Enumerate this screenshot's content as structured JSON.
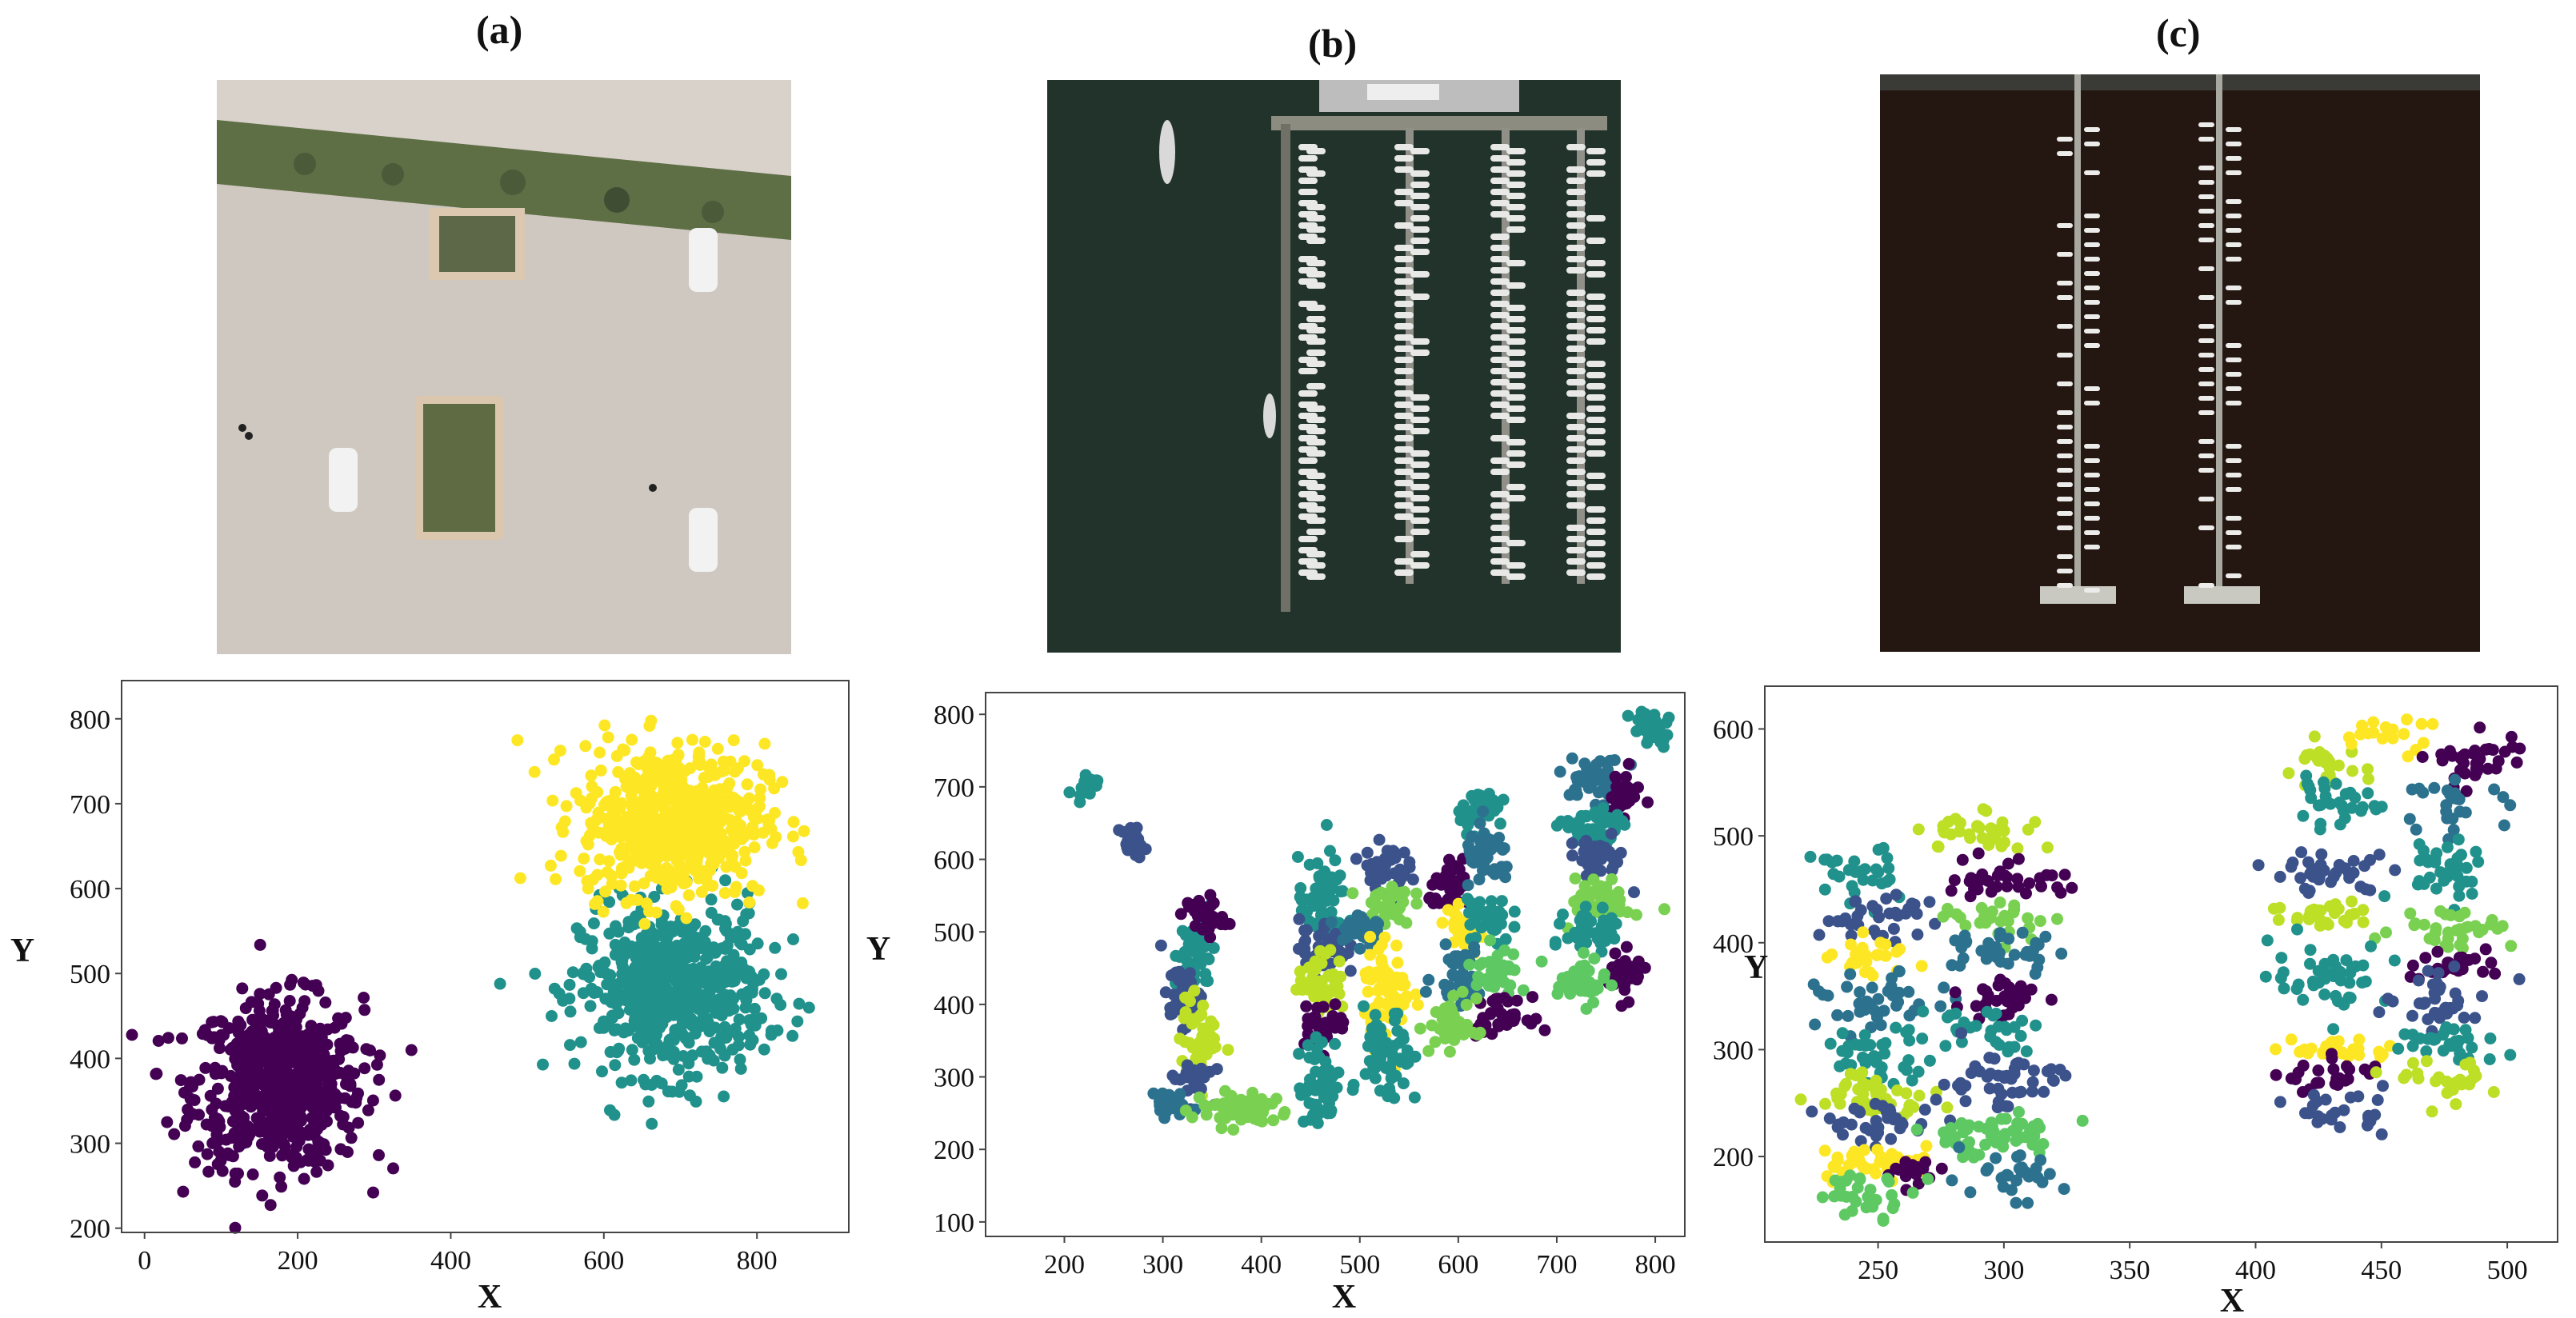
{
  "panels": [
    {
      "label": "(a)"
    },
    {
      "label": "(b)"
    },
    {
      "label": "(c)"
    }
  ],
  "photos": [
    {
      "description_icon": "parking-lot-aerial-photo"
    },
    {
      "description_icon": "marina-aerial-photo"
    },
    {
      "description_icon": "dark-marina-aerial-photo"
    }
  ],
  "chart_data": [
    {
      "type": "scatter",
      "xlabel": "X",
      "ylabel": "Y",
      "xlim": [
        -30,
        920
      ],
      "ylim": [
        195,
        845
      ],
      "xticks": [
        0,
        200,
        400,
        600,
        800
      ],
      "yticks": [
        200,
        300,
        400,
        500,
        600,
        700,
        800
      ],
      "grid": false,
      "clusters": [
        {
          "color": "#440154",
          "cx": 175,
          "cy": 370,
          "sx": 55,
          "sy": 50,
          "n": 650
        },
        {
          "color": "#21918c",
          "cx": 690,
          "cy": 480,
          "sx": 60,
          "sy": 50,
          "n": 600
        },
        {
          "color": "#fde725",
          "cx": 690,
          "cy": 680,
          "sx": 60,
          "sy": 45,
          "n": 600
        }
      ]
    },
    {
      "type": "scatter",
      "xlabel": "X",
      "ylabel": "Y",
      "xlim": [
        120,
        830
      ],
      "ylim": [
        80,
        830
      ],
      "xticks": [
        200,
        300,
        400,
        500,
        600,
        700,
        800
      ],
      "yticks": [
        100,
        200,
        300,
        400,
        500,
        600,
        700,
        800
      ],
      "grid": false,
      "clusters": [
        {
          "color": "#21918c",
          "cx": 222,
          "cy": 703,
          "sx": 6,
          "sy": 8,
          "n": 20
        },
        {
          "color": "#3b528b",
          "cx": 270,
          "cy": 625,
          "sx": 6,
          "sy": 10,
          "n": 25
        },
        {
          "color": "#21918c",
          "cx": 333,
          "cy": 470,
          "sx": 10,
          "sy": 25,
          "n": 40
        },
        {
          "color": "#440154",
          "cx": 343,
          "cy": 520,
          "sx": 10,
          "sy": 15,
          "n": 35
        },
        {
          "color": "#3b528b",
          "cx": 318,
          "cy": 410,
          "sx": 10,
          "sy": 20,
          "n": 35
        },
        {
          "color": "#bddf26",
          "cx": 338,
          "cy": 350,
          "sx": 10,
          "sy": 30,
          "n": 45
        },
        {
          "color": "#3b528b",
          "cx": 330,
          "cy": 300,
          "sx": 10,
          "sy": 15,
          "n": 30
        },
        {
          "color": "#2c728e",
          "cx": 300,
          "cy": 265,
          "sx": 10,
          "sy": 10,
          "n": 25
        },
        {
          "color": "#7ad151",
          "cx": 380,
          "cy": 255,
          "sx": 25,
          "sy": 12,
          "n": 60
        },
        {
          "color": "#21918c",
          "cx": 462,
          "cy": 540,
          "sx": 12,
          "sy": 30,
          "n": 60
        },
        {
          "color": "#3b528b",
          "cx": 462,
          "cy": 480,
          "sx": 12,
          "sy": 20,
          "n": 45
        },
        {
          "color": "#bddf26",
          "cx": 462,
          "cy": 430,
          "sx": 12,
          "sy": 20,
          "n": 45
        },
        {
          "color": "#440154",
          "cx": 462,
          "cy": 375,
          "sx": 12,
          "sy": 15,
          "n": 40
        },
        {
          "color": "#21918c",
          "cx": 462,
          "cy": 290,
          "sx": 12,
          "sy": 30,
          "n": 55
        },
        {
          "color": "#3b528b",
          "cx": 525,
          "cy": 590,
          "sx": 12,
          "sy": 15,
          "n": 40
        },
        {
          "color": "#7ad151",
          "cx": 528,
          "cy": 540,
          "sx": 12,
          "sy": 15,
          "n": 40
        },
        {
          "color": "#2c728e",
          "cx": 500,
          "cy": 505,
          "sx": 12,
          "sy": 15,
          "n": 30
        },
        {
          "color": "#fde725",
          "cx": 528,
          "cy": 420,
          "sx": 12,
          "sy": 35,
          "n": 65
        },
        {
          "color": "#21918c",
          "cx": 528,
          "cy": 320,
          "sx": 12,
          "sy": 35,
          "n": 60
        },
        {
          "color": "#21918c",
          "cx": 625,
          "cy": 670,
          "sx": 12,
          "sy": 15,
          "n": 40
        },
        {
          "color": "#440154",
          "cx": 595,
          "cy": 560,
          "sx": 12,
          "sy": 15,
          "n": 35
        },
        {
          "color": "#2c728e",
          "cx": 630,
          "cy": 600,
          "sx": 12,
          "sy": 20,
          "n": 45
        },
        {
          "color": "#fde725",
          "cx": 605,
          "cy": 500,
          "sx": 12,
          "sy": 15,
          "n": 35
        },
        {
          "color": "#21918c",
          "cx": 630,
          "cy": 520,
          "sx": 12,
          "sy": 20,
          "n": 40
        },
        {
          "color": "#2c728e",
          "cx": 600,
          "cy": 440,
          "sx": 12,
          "sy": 20,
          "n": 40
        },
        {
          "color": "#5ec962",
          "cx": 640,
          "cy": 450,
          "sx": 15,
          "sy": 15,
          "n": 40
        },
        {
          "color": "#440154",
          "cx": 640,
          "cy": 385,
          "sx": 15,
          "sy": 12,
          "n": 35
        },
        {
          "color": "#7ad151",
          "cx": 595,
          "cy": 370,
          "sx": 12,
          "sy": 20,
          "n": 40
        },
        {
          "color": "#2c728e",
          "cx": 740,
          "cy": 710,
          "sx": 15,
          "sy": 15,
          "n": 40
        },
        {
          "color": "#440154",
          "cx": 765,
          "cy": 690,
          "sx": 10,
          "sy": 15,
          "n": 35
        },
        {
          "color": "#21918c",
          "cx": 735,
          "cy": 640,
          "sx": 15,
          "sy": 15,
          "n": 45
        },
        {
          "color": "#3b528b",
          "cx": 740,
          "cy": 600,
          "sx": 15,
          "sy": 15,
          "n": 45
        },
        {
          "color": "#7ad151",
          "cx": 745,
          "cy": 545,
          "sx": 15,
          "sy": 15,
          "n": 45
        },
        {
          "color": "#21918c",
          "cx": 740,
          "cy": 500,
          "sx": 15,
          "sy": 15,
          "n": 45
        },
        {
          "color": "#440154",
          "cx": 770,
          "cy": 440,
          "sx": 10,
          "sy": 15,
          "n": 35
        },
        {
          "color": "#5ec962",
          "cx": 725,
          "cy": 430,
          "sx": 12,
          "sy": 15,
          "n": 40
        },
        {
          "color": "#21918c",
          "cx": 795,
          "cy": 780,
          "sx": 10,
          "sy": 15,
          "n": 35
        }
      ]
    },
    {
      "type": "scatter",
      "xlabel": "X",
      "ylabel": "Y",
      "xlim": [
        205,
        520
      ],
      "ylim": [
        120,
        640
      ],
      "xticks": [
        250,
        300,
        350,
        400,
        450,
        500
      ],
      "yticks": [
        200,
        300,
        400,
        500,
        600
      ],
      "grid": false,
      "clusters": [
        {
          "color": "#21918c",
          "cx": 240,
          "cy": 460,
          "sx": 8,
          "sy": 15,
          "n": 30
        },
        {
          "color": "#3b528b",
          "cx": 250,
          "cy": 425,
          "sx": 12,
          "sy": 10,
          "n": 35
        },
        {
          "color": "#fde725",
          "cx": 248,
          "cy": 385,
          "sx": 8,
          "sy": 10,
          "n": 25
        },
        {
          "color": "#2c728e",
          "cx": 250,
          "cy": 340,
          "sx": 12,
          "sy": 15,
          "n": 40
        },
        {
          "color": "#21918c",
          "cx": 250,
          "cy": 295,
          "sx": 12,
          "sy": 12,
          "n": 40
        },
        {
          "color": "#bddf26",
          "cx": 250,
          "cy": 260,
          "sx": 12,
          "sy": 10,
          "n": 40
        },
        {
          "color": "#3b528b",
          "cx": 250,
          "cy": 230,
          "sx": 12,
          "sy": 10,
          "n": 35
        },
        {
          "color": "#fde725",
          "cx": 248,
          "cy": 195,
          "sx": 12,
          "sy": 8,
          "n": 35
        },
        {
          "color": "#440154",
          "cx": 265,
          "cy": 185,
          "sx": 6,
          "sy": 6,
          "n": 15
        },
        {
          "color": "#5ec962",
          "cx": 245,
          "cy": 165,
          "sx": 10,
          "sy": 10,
          "n": 30
        },
        {
          "color": "#bddf26",
          "cx": 292,
          "cy": 505,
          "sx": 12,
          "sy": 10,
          "n": 35
        },
        {
          "color": "#440154",
          "cx": 300,
          "cy": 460,
          "sx": 12,
          "sy": 10,
          "n": 35
        },
        {
          "color": "#7ad151",
          "cx": 298,
          "cy": 425,
          "sx": 12,
          "sy": 10,
          "n": 30
        },
        {
          "color": "#2c728e",
          "cx": 298,
          "cy": 390,
          "sx": 12,
          "sy": 10,
          "n": 35
        },
        {
          "color": "#440154",
          "cx": 300,
          "cy": 350,
          "sx": 8,
          "sy": 12,
          "n": 30
        },
        {
          "color": "#21918c",
          "cx": 290,
          "cy": 320,
          "sx": 12,
          "sy": 10,
          "n": 30
        },
        {
          "color": "#3b528b",
          "cx": 298,
          "cy": 270,
          "sx": 12,
          "sy": 15,
          "n": 45
        },
        {
          "color": "#5ec962",
          "cx": 295,
          "cy": 220,
          "sx": 15,
          "sy": 10,
          "n": 55
        },
        {
          "color": "#2c728e",
          "cx": 300,
          "cy": 180,
          "sx": 12,
          "sy": 10,
          "n": 30
        },
        {
          "color": "#bddf26",
          "cx": 428,
          "cy": 565,
          "sx": 8,
          "sy": 10,
          "n": 25
        },
        {
          "color": "#21918c",
          "cx": 430,
          "cy": 530,
          "sx": 10,
          "sy": 10,
          "n": 30
        },
        {
          "color": "#fde725",
          "cx": 450,
          "cy": 595,
          "sx": 10,
          "sy": 8,
          "n": 20
        },
        {
          "color": "#440154",
          "cx": 488,
          "cy": 570,
          "sx": 10,
          "sy": 15,
          "n": 35
        },
        {
          "color": "#2c728e",
          "cx": 480,
          "cy": 530,
          "sx": 10,
          "sy": 10,
          "n": 25
        },
        {
          "color": "#3b528b",
          "cx": 430,
          "cy": 465,
          "sx": 12,
          "sy": 10,
          "n": 35
        },
        {
          "color": "#21918c",
          "cx": 475,
          "cy": 470,
          "sx": 10,
          "sy": 15,
          "n": 35
        },
        {
          "color": "#bddf26",
          "cx": 430,
          "cy": 425,
          "sx": 12,
          "sy": 8,
          "n": 30
        },
        {
          "color": "#7ad151",
          "cx": 478,
          "cy": 415,
          "sx": 12,
          "sy": 10,
          "n": 35
        },
        {
          "color": "#21918c",
          "cx": 430,
          "cy": 370,
          "sx": 12,
          "sy": 15,
          "n": 45
        },
        {
          "color": "#440154",
          "cx": 478,
          "cy": 380,
          "sx": 10,
          "sy": 8,
          "n": 25
        },
        {
          "color": "#3b528b",
          "cx": 475,
          "cy": 345,
          "sx": 12,
          "sy": 12,
          "n": 35
        },
        {
          "color": "#fde725",
          "cx": 435,
          "cy": 300,
          "sx": 10,
          "sy": 6,
          "n": 25
        },
        {
          "color": "#21918c",
          "cx": 475,
          "cy": 305,
          "sx": 12,
          "sy": 10,
          "n": 30
        },
        {
          "color": "#440154",
          "cx": 432,
          "cy": 275,
          "sx": 10,
          "sy": 8,
          "n": 25
        },
        {
          "color": "#bddf26",
          "cx": 478,
          "cy": 270,
          "sx": 10,
          "sy": 10,
          "n": 25
        },
        {
          "color": "#3b528b",
          "cx": 432,
          "cy": 245,
          "sx": 10,
          "sy": 10,
          "n": 25
        }
      ]
    }
  ]
}
